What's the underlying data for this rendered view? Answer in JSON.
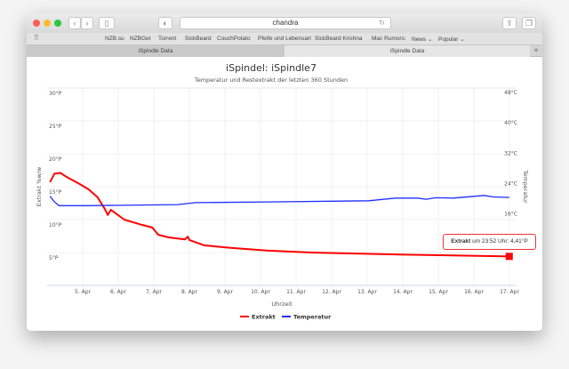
{
  "browser": {
    "address": "chandra",
    "bookmarks": [
      "NZB.su",
      "NZBGet",
      "Torrent",
      "SickBeard",
      "CouchPotato",
      "Pfeife und Lebensart",
      "SickBeard Krishna",
      "Mac Rumors:",
      "News ⌄",
      "Popular ⌄"
    ],
    "tabs": [
      {
        "label": "iSpindle Data",
        "active": false
      },
      {
        "label": "iSpindle Data",
        "active": true
      }
    ],
    "icons": [
      "back-icon",
      "forward-icon",
      "sidebar-icon",
      "privacy-icon",
      "reload-icon",
      "share-icon",
      "tabs-icon",
      "grid-icon",
      "plus-icon"
    ]
  },
  "tooltip": {
    "series": "Extrakt",
    "text": " um 23:52 Uhr: 4,41°P"
  },
  "chart_data": {
    "type": "line",
    "title": "iSpindel: iSpindle7",
    "subtitle": "Temperatur und Restextrakt der letzten 360 Stunden",
    "xlabel": "Uhrzeit",
    "ylabel_left": "Extrakt %w/w",
    "ylabel_right": "Temperatur",
    "x_ticks": [
      "5. Apr",
      "6. Apr",
      "7. Apr",
      "8. Apr",
      "9. Apr",
      "10. Apr",
      "11. Apr",
      "12. Apr",
      "13. Apr",
      "14. Apr",
      "15. Apr",
      "16. Apr",
      "17. Apr"
    ],
    "y_left_ticks": [
      "5°P",
      "10°P",
      "15°P",
      "20°P",
      "25°P",
      "30°P"
    ],
    "y_right_ticks": [
      "16°C",
      "24°C",
      "32°C",
      "40°C",
      "48°C"
    ],
    "ylim_left": [
      0,
      30
    ],
    "ylim_right": [
      -4,
      48
    ],
    "grid": true,
    "legend": "bottom",
    "series": [
      {
        "name": "Extrakt",
        "color": "#ff0000",
        "axis": "left",
        "points": [
          [
            "Apr 4 02:00",
            15.7
          ],
          [
            "Apr 4 05:00",
            17.0
          ],
          [
            "Apr 4 09:00",
            17.1
          ],
          [
            "Apr 4 13:00",
            16.5
          ],
          [
            "Apr 4 22:00",
            15.4
          ],
          [
            "Apr 5 04:00",
            14.6
          ],
          [
            "Apr 5 10:00",
            13.4
          ],
          [
            "Apr 5 15:00",
            11.6
          ],
          [
            "Apr 5 17:00",
            10.7
          ],
          [
            "Apr 5 19:00",
            11.5
          ],
          [
            "Apr 5 22:00",
            11.0
          ],
          [
            "Apr 6 04:00",
            10.0
          ],
          [
            "Apr 6 16:00",
            9.2
          ],
          [
            "Apr 6 23:00",
            8.8
          ],
          [
            "Apr 7 03:00",
            7.7
          ],
          [
            "Apr 7 10:00",
            7.3
          ],
          [
            "Apr 7 21:00",
            7.0
          ],
          [
            "Apr 7 23:00",
            7.4
          ],
          [
            "Apr 8 00:00",
            6.9
          ],
          [
            "Apr 8 10:00",
            6.1
          ],
          [
            "Apr 9 04:00",
            5.7
          ],
          [
            "Apr 10 04:00",
            5.3
          ],
          [
            "Apr 11 10:00",
            5.0
          ],
          [
            "Apr 13 22:00",
            4.7
          ],
          [
            "Apr 16 23:52",
            4.41
          ]
        ]
      },
      {
        "name": "Temperatur",
        "color": "#1f2eff",
        "axis": "right",
        "points": [
          [
            "Apr 4 02:00",
            19.5
          ],
          [
            "Apr 4 05:00",
            18.0
          ],
          [
            "Apr 4 08:00",
            17.0
          ],
          [
            "Apr 5 04:00",
            17.0
          ],
          [
            "Apr 7 16:00",
            17.3
          ],
          [
            "Apr 8 04:00",
            17.8
          ],
          [
            "Apr 10 04:00",
            18.0
          ],
          [
            "Apr 13 01:00",
            18.3
          ],
          [
            "Apr 13 19:00",
            19.0
          ],
          [
            "Apr 14 10:00",
            19.0
          ],
          [
            "Apr 14 16:00",
            18.7
          ],
          [
            "Apr 14 22:00",
            19.1
          ],
          [
            "Apr 15 10:00",
            19.0
          ],
          [
            "Apr 16 07:00",
            19.7
          ],
          [
            "Apr 16 13:00",
            19.3
          ],
          [
            "Apr 16 23:52",
            19.2
          ]
        ]
      }
    ]
  }
}
